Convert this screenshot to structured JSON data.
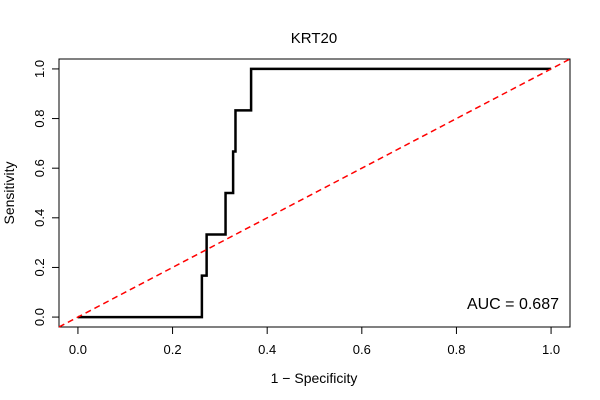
{
  "chart_data": {
    "type": "line",
    "title": "KRT20",
    "xlabel": "1 − Specificity",
    "ylabel": "Sensitivity",
    "xlim": [
      -0.04,
      1.04
    ],
    "ylim": [
      -0.04,
      1.04
    ],
    "x_ticks": [
      "0.0",
      "0.2",
      "0.4",
      "0.6",
      "0.8",
      "1.0"
    ],
    "y_ticks": [
      "0.0",
      "0.2",
      "0.4",
      "0.6",
      "0.8",
      "1.0"
    ],
    "grid": false,
    "series": [
      {
        "style": "solid",
        "color": "#000000",
        "x": [
          0.0,
          0.262,
          0.262,
          0.272,
          0.272,
          0.312,
          0.312,
          0.328,
          0.328,
          0.333,
          0.333,
          0.366,
          0.366,
          1.0
        ],
        "y": [
          0.0,
          0.0,
          0.167,
          0.167,
          0.333,
          0.333,
          0.5,
          0.5,
          0.667,
          0.667,
          0.833,
          0.833,
          1.0,
          1.0
        ]
      },
      {
        "style": "dashed",
        "color": "#ff0000",
        "x": [
          -0.04,
          1.04
        ],
        "y": [
          -0.04,
          1.04
        ]
      }
    ],
    "annotation": "AUC = 0.687"
  }
}
